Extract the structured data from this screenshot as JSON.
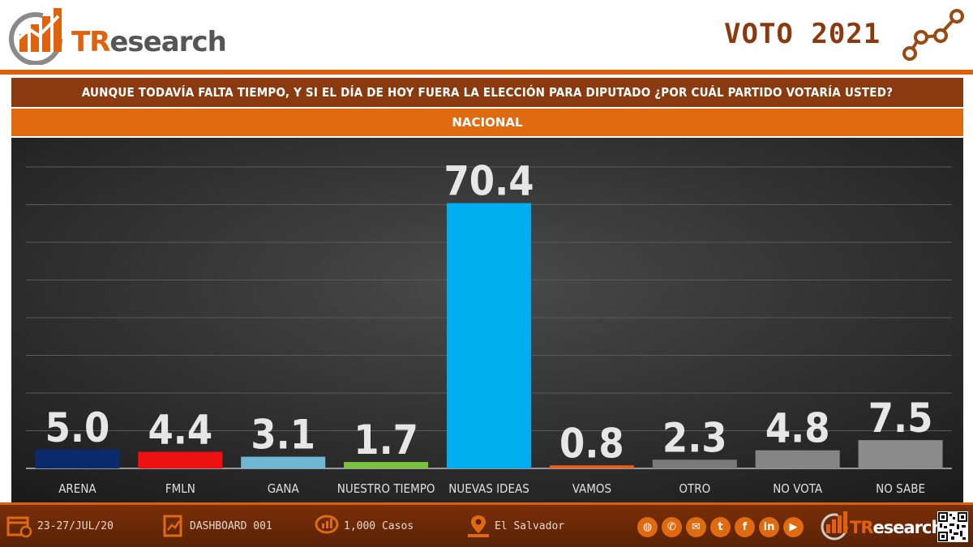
{
  "header": {
    "logo_tr": "TR",
    "logo_rest": "esearch",
    "campaign_title": "VOTO 2021"
  },
  "question": "AUNQUE TODAVÍA FALTA TIEMPO, Y SI EL DÍA DE HOY FUERA LA ELECCIÓN PARA DIPUTADO ¿POR CUÁL PARTIDO VOTARÍA USTED?",
  "scope": "NACIONAL",
  "chart_data": {
    "type": "bar",
    "title": "AUNQUE TODAVÍA FALTA TIEMPO, Y SI EL DÍA DE HOY FUERA LA ELECCIÓN PARA DIPUTADO ¿POR CUÁL PARTIDO VOTARÍA USTED?",
    "subtitle": "NACIONAL",
    "categories": [
      "ARENA",
      "FMLN",
      "GANA",
      "NUESTRO TIEMPO",
      "NUEVAS IDEAS",
      "VAMOS",
      "OTRO",
      "NO VOTA",
      "NO SABE"
    ],
    "values": [
      5.0,
      4.4,
      3.1,
      1.7,
      70.4,
      0.8,
      2.3,
      4.8,
      7.5
    ],
    "labels": [
      "5.0",
      "4.4",
      "3.1",
      "1.7",
      "70.4",
      "0.8",
      "2.3",
      "4.8",
      "7.5"
    ],
    "colors": [
      "#0c2a6e",
      "#ee1111",
      "#6fb8d4",
      "#7ac142",
      "#00aeef",
      "#e8601a",
      "#7a7a7a",
      "#858585",
      "#8c8c8c"
    ],
    "ylim": [
      0,
      80
    ],
    "grid": true,
    "xlabel": "",
    "ylabel": ""
  },
  "footer": {
    "dates": "23-27/JUL/20",
    "dashboard": "DASHBOARD 001",
    "cases": "1,000 Casos",
    "location": "El Salvador",
    "social": [
      {
        "icon": "globe-icon",
        "glyph": "◍"
      },
      {
        "icon": "phone-icon",
        "glyph": "✆"
      },
      {
        "icon": "mail-icon",
        "glyph": "✉"
      },
      {
        "icon": "twitter-icon",
        "glyph": "t"
      },
      {
        "icon": "facebook-icon",
        "glyph": "f"
      },
      {
        "icon": "linkedin-icon",
        "glyph": "in"
      },
      {
        "icon": "youtube-icon",
        "glyph": "▶"
      }
    ],
    "logo_tr": "TR",
    "logo_rest": "esearch"
  }
}
